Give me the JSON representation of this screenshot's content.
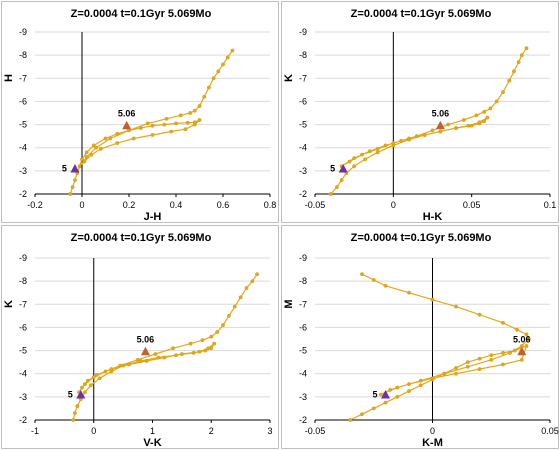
{
  "colors": {
    "track": "#e6a817",
    "track_stroke": "#c8960c",
    "marker_5": "#7030a0",
    "marker_506": "#c0622f",
    "axis": "#000000",
    "grid": "#d9d9d9"
  },
  "chart_data": [
    {
      "type": "line",
      "title": "Z=0.0004  t=0.1Gyr  5.069Mo",
      "xlabel": "J-H",
      "ylabel": "H",
      "xlim": [
        -0.2,
        0.8
      ],
      "ylim": [
        -2,
        -9
      ],
      "xticks": [
        "-0.2",
        "0",
        "0.2",
        "0.4",
        "0.6",
        "0.8"
      ],
      "xtick_values": [
        -0.2,
        0,
        0.2,
        0.4,
        0.6,
        0.8
      ],
      "yticks": [
        "-2",
        "-3",
        "-4",
        "-5",
        "-6",
        "-7",
        "-8",
        "-9"
      ],
      "ytick_values": [
        -2,
        -3,
        -4,
        -5,
        -6,
        -7,
        -8,
        -9
      ],
      "grid": "horizontal",
      "y_inverted": true,
      "series": [
        {
          "x": [
            -0.05,
            -0.04,
            -0.03,
            -0.02,
            -0.01,
            0.0,
            0.02,
            0.05,
            0.1,
            0.15,
            0.2,
            0.25,
            0.3,
            0.35,
            0.4,
            0.45,
            0.48,
            0.5,
            0.48,
            0.44,
            0.38,
            0.3,
            0.22,
            0.15,
            0.08,
            0.04,
            0.01,
            -0.01,
            0.02,
            0.06,
            0.12,
            0.2,
            0.28,
            0.36,
            0.42,
            0.46,
            0.48,
            0.5,
            0.52,
            0.54,
            0.56,
            0.58,
            0.6,
            0.62,
            0.64
          ],
          "y": [
            -2.0,
            -2.3,
            -2.6,
            -2.9,
            -3.2,
            -3.5,
            -3.8,
            -4.1,
            -4.4,
            -4.6,
            -4.75,
            -4.85,
            -4.95,
            -5.0,
            -5.05,
            -5.08,
            -5.1,
            -5.2,
            -5.0,
            -4.8,
            -4.7,
            -4.55,
            -4.4,
            -4.2,
            -3.95,
            -3.7,
            -3.4,
            -3.2,
            -3.6,
            -4.0,
            -4.4,
            -4.75,
            -5.05,
            -5.25,
            -5.4,
            -5.5,
            -5.6,
            -5.8,
            -6.2,
            -6.6,
            -7.0,
            -7.3,
            -7.6,
            -7.9,
            -8.2
          ]
        }
      ],
      "markers": [
        {
          "label": "5",
          "x": -0.03,
          "y": -3.1
        },
        {
          "label": "5.06",
          "x": 0.19,
          "y": -4.97
        }
      ]
    },
    {
      "type": "line",
      "title": "Z=0.0004  t=0.1Gyr  5.069Mo",
      "xlabel": "H-K",
      "ylabel": "K",
      "xlim": [
        -0.05,
        0.1
      ],
      "ylim": [
        -2,
        -9
      ],
      "xticks": [
        "-0.05",
        "0",
        "0.05",
        "0.1"
      ],
      "xtick_values": [
        -0.05,
        0,
        0.05,
        0.1
      ],
      "yticks": [
        "-2",
        "-3",
        "-4",
        "-5",
        "-6",
        "-7",
        "-8",
        "-9"
      ],
      "ytick_values": [
        -2,
        -3,
        -4,
        -5,
        -6,
        -7,
        -8,
        -9
      ],
      "grid": "horizontal",
      "y_inverted": true,
      "series": [
        {
          "x": [
            -0.04,
            -0.036,
            -0.033,
            -0.03,
            -0.025,
            -0.018,
            -0.01,
            0.0,
            0.01,
            0.02,
            0.03,
            0.04,
            0.05,
            0.055,
            0.058,
            0.06,
            0.055,
            0.048,
            0.04,
            0.03,
            0.02,
            0.01,
            0.0,
            -0.01,
            -0.02,
            -0.028,
            -0.033,
            -0.025,
            -0.015,
            -0.005,
            0.005,
            0.015,
            0.025,
            0.035,
            0.045,
            0.053,
            0.058,
            0.062,
            0.066,
            0.07,
            0.074,
            0.077,
            0.08,
            0.082,
            0.085
          ],
          "y": [
            -2.0,
            -2.3,
            -2.6,
            -2.9,
            -3.2,
            -3.5,
            -3.8,
            -4.1,
            -4.35,
            -4.55,
            -4.7,
            -4.85,
            -4.95,
            -5.05,
            -5.15,
            -5.3,
            -5.1,
            -4.95,
            -4.85,
            -4.7,
            -4.55,
            -4.4,
            -4.2,
            -3.95,
            -3.7,
            -3.4,
            -3.2,
            -3.55,
            -3.85,
            -4.1,
            -4.3,
            -4.5,
            -4.75,
            -5.0,
            -5.2,
            -5.4,
            -5.55,
            -5.7,
            -6.0,
            -6.4,
            -6.9,
            -7.3,
            -7.7,
            -8.0,
            -8.3
          ]
        }
      ],
      "markers": [
        {
          "label": "5",
          "x": -0.032,
          "y": -3.1
        },
        {
          "label": "5.06",
          "x": 0.03,
          "y": -4.97
        }
      ]
    },
    {
      "type": "line",
      "title": "Z=0.0004  t=0.1Gyr  5.069Mo",
      "xlabel": "V-K",
      "ylabel": "K",
      "xlim": [
        -1,
        3
      ],
      "ylim": [
        -2,
        -9
      ],
      "xticks": [
        "-1",
        "0",
        "1",
        "2",
        "3"
      ],
      "xtick_values": [
        -1,
        0,
        1,
        2,
        3
      ],
      "yticks": [
        "-2",
        "-3",
        "-4",
        "-5",
        "-6",
        "-7",
        "-8",
        "-9"
      ],
      "ytick_values": [
        -2,
        -3,
        -4,
        -5,
        -6,
        -7,
        -8,
        -9
      ],
      "grid": "horizontal",
      "y_inverted": true,
      "series": [
        {
          "x": [
            -0.35,
            -0.32,
            -0.28,
            -0.22,
            -0.15,
            -0.05,
            0.1,
            0.3,
            0.5,
            0.8,
            1.1,
            1.4,
            1.7,
            1.9,
            2.0,
            2.05,
            1.95,
            1.8,
            1.5,
            1.2,
            0.9,
            0.6,
            0.3,
            0.05,
            -0.1,
            -0.2,
            -0.25,
            -0.15,
            0.0,
            0.2,
            0.45,
            0.75,
            1.05,
            1.35,
            1.65,
            1.85,
            2.0,
            2.1,
            2.2,
            2.3,
            2.4,
            2.5,
            2.6,
            2.7,
            2.78
          ],
          "y": [
            -2.0,
            -2.3,
            -2.6,
            -2.9,
            -3.2,
            -3.5,
            -3.8,
            -4.1,
            -4.35,
            -4.55,
            -4.7,
            -4.8,
            -4.9,
            -5.0,
            -5.1,
            -5.3,
            -5.1,
            -4.95,
            -4.85,
            -4.7,
            -4.55,
            -4.4,
            -4.2,
            -3.95,
            -3.7,
            -3.4,
            -3.2,
            -3.55,
            -3.85,
            -4.1,
            -4.35,
            -4.6,
            -4.85,
            -5.1,
            -5.3,
            -5.45,
            -5.6,
            -5.8,
            -6.1,
            -6.5,
            -6.9,
            -7.3,
            -7.7,
            -8.0,
            -8.3
          ]
        }
      ],
      "markers": [
        {
          "label": "5",
          "x": -0.22,
          "y": -3.1
        },
        {
          "label": "5.06",
          "x": 0.88,
          "y": -4.97
        }
      ]
    },
    {
      "type": "line",
      "title": "Z=0.0004  t=0.1Gyr  5.069Mo",
      "xlabel": "K-M",
      "ylabel": "M",
      "xlim": [
        -0.05,
        0.05
      ],
      "ylim": [
        -2,
        -9
      ],
      "xticks": [
        "-0.05",
        "0",
        "0.05"
      ],
      "xtick_values": [
        -0.05,
        0,
        0.05
      ],
      "yticks": [
        "-2",
        "-3",
        "-4",
        "-5",
        "-6",
        "-7",
        "-8",
        "-9"
      ],
      "ytick_values": [
        -2,
        -3,
        -4,
        -5,
        -6,
        -7,
        -8,
        -9
      ],
      "grid": "horizontal",
      "y_inverted": true,
      "series": [
        {
          "x": [
            -0.035,
            -0.03,
            -0.025,
            -0.02,
            -0.015,
            -0.01,
            -0.005,
            0.0,
            0.005,
            0.01,
            0.015,
            0.02,
            0.025,
            0.03,
            0.035,
            0.04,
            0.038,
            0.03,
            0.02,
            0.01,
            0.0,
            -0.01,
            -0.018,
            -0.022,
            -0.015,
            -0.005,
            0.005,
            0.015,
            0.025,
            0.033,
            0.038,
            0.041,
            0.04,
            0.036,
            0.03,
            0.02,
            0.01,
            0.0,
            -0.01,
            -0.02,
            -0.025,
            -0.03
          ],
          "y": [
            -2.0,
            -2.25,
            -2.5,
            -2.75,
            -3.0,
            -3.25,
            -3.5,
            -3.75,
            -4.0,
            -4.25,
            -4.5,
            -4.65,
            -4.8,
            -4.9,
            -5.0,
            -5.2,
            -4.6,
            -4.4,
            -4.2,
            -4.0,
            -3.8,
            -3.55,
            -3.3,
            -3.1,
            -3.4,
            -3.7,
            -4.0,
            -4.3,
            -4.6,
            -4.9,
            -5.2,
            -5.5,
            -5.7,
            -5.9,
            -6.2,
            -6.55,
            -6.9,
            -7.2,
            -7.5,
            -7.8,
            -8.05,
            -8.3
          ]
        }
      ],
      "markers": [
        {
          "label": "5",
          "x": -0.02,
          "y": -3.1
        },
        {
          "label": "5.06",
          "x": 0.038,
          "y": -4.97
        }
      ]
    }
  ]
}
